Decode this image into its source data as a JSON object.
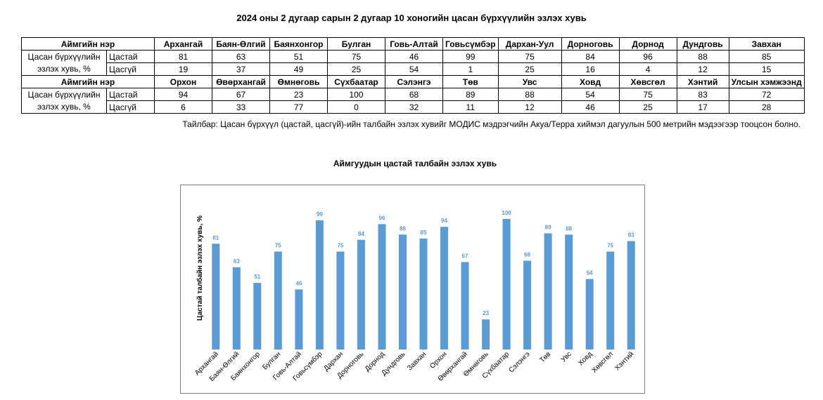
{
  "title": "2024 оны 2 дугаар сарын 2 дугаар 10 хоногийн цасан бүрхүүлийн эзлэх хувь",
  "table": {
    "row_label": "Цасан бүрхүүлийн эзлэх хувь, %",
    "sub_labels": [
      "Цастай",
      "Цасгүй"
    ],
    "blocks": [
      {
        "header_label": "Аймгийн нэр",
        "columns": [
          "Архангай",
          "Баян-Өлгий",
          "Баянхонгор",
          "Булган",
          "Говь-Алтай",
          "Говьсүмбэр",
          "Дархан-Уул",
          "Дорноговь",
          "Дорнод",
          "Дундговь",
          "Завхан"
        ],
        "snow": [
          "81",
          "63",
          "51",
          "75",
          "46",
          "99",
          "75",
          "84",
          "96",
          "88",
          "85"
        ],
        "nosnow": [
          "19",
          "37",
          "49",
          "25",
          "54",
          "1",
          "25",
          "16",
          "4",
          "12",
          "15"
        ]
      },
      {
        "header_label": "Аймгийн нэр",
        "columns": [
          "Орхон",
          "Өвөрхангай",
          "Өмнөговь",
          "Сүхбаатар",
          "Сэлэнгэ",
          "Төв",
          "Увс",
          "Ховд",
          "Хөвсгөл",
          "Хэнтий",
          "Улсын хэмжээнд"
        ],
        "snow": [
          "94",
          "67",
          "23",
          "100",
          "68",
          "89",
          "88",
          "54",
          "75",
          "83",
          "72"
        ],
        "nosnow": [
          "6",
          "33",
          "77",
          "0",
          "32",
          "11",
          "12",
          "46",
          "25",
          "17",
          "28"
        ]
      }
    ]
  },
  "note": "Тайлбар: Цасан бүрхүүл (цастай, цасгүй)-ийн талбайн эзлэх хувийг МОДИС мэдрэгчийн Акуа/Терра хиймэл дагуулын 500 метрийн мэдээгээр тооцсон болно.",
  "chart_data": {
    "type": "bar",
    "title": "Аймгуудын цастай талбайн эзлэх хувь",
    "xlabel": "",
    "ylabel": "Цастай талбайн эзлэх хувь, %",
    "categories": [
      "Архангай",
      "Баян-Өлгий",
      "Баянхонгор",
      "Булган",
      "Говь-Алтай",
      "Говьсүмбэр",
      "Дархан",
      "Дорноговь",
      "Дорнод",
      "Дундговь",
      "Завхан",
      "Орхон",
      "Өвөрхангай",
      "Өмнөговь",
      "Сүхбаатар",
      "Сэлэнгэ",
      "Төв",
      "Увс",
      "Ховд",
      "Хөвсгөл",
      "Хэнтий"
    ],
    "values": [
      81,
      63,
      51,
      75,
      46,
      99,
      75,
      84,
      96,
      88,
      85,
      94,
      67,
      23,
      100,
      68,
      89,
      88,
      54,
      75,
      83
    ],
    "ylim": [
      0,
      100
    ],
    "grid": false,
    "legend": "none",
    "bar_color": "#5b9bd5",
    "label_color": "#5b9bd5"
  }
}
